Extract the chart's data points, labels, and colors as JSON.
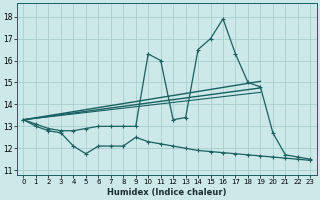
{
  "xlabel": "Humidex (Indice chaleur)",
  "background_color": "#cce8e8",
  "grid_color": "#aacece",
  "line_color": "#1a6060",
  "x_ticks": [
    0,
    1,
    2,
    3,
    4,
    5,
    6,
    7,
    8,
    9,
    10,
    11,
    12,
    13,
    14,
    15,
    16,
    17,
    18,
    19,
    20,
    21,
    22,
    23
  ],
  "y_ticks": [
    11,
    12,
    13,
    14,
    15,
    16,
    17,
    18
  ],
  "ylim": [
    10.8,
    18.6
  ],
  "xlim": [
    -0.5,
    23.5
  ],
  "upper_x": [
    0,
    1,
    2,
    3,
    4,
    5,
    6,
    7,
    8,
    9,
    10,
    11,
    12,
    13,
    14,
    15,
    16,
    17,
    18,
    19,
    20,
    21,
    22,
    23
  ],
  "upper_y": [
    13.3,
    13.1,
    12.9,
    12.8,
    12.8,
    12.9,
    13.0,
    13.0,
    13.0,
    13.0,
    16.3,
    16.0,
    13.3,
    13.4,
    16.5,
    17.0,
    17.9,
    16.3,
    15.0,
    14.8,
    12.7,
    11.7,
    11.6,
    11.5
  ],
  "lower_x": [
    0,
    1,
    2,
    3,
    4,
    5,
    6,
    7,
    8,
    9,
    10,
    11,
    12,
    13,
    14,
    15,
    16,
    17,
    18,
    19,
    20,
    21,
    22,
    23
  ],
  "lower_y": [
    13.3,
    13.0,
    12.8,
    12.7,
    12.1,
    11.75,
    12.1,
    12.1,
    12.1,
    12.5,
    12.3,
    12.2,
    12.1,
    12.0,
    11.9,
    11.85,
    11.8,
    11.75,
    11.7,
    11.65,
    11.6,
    11.55,
    11.5,
    11.45
  ],
  "line1_x": [
    0,
    19
  ],
  "line1_y": [
    13.3,
    15.05
  ],
  "line2_x": [
    0,
    19
  ],
  "line2_y": [
    13.3,
    14.75
  ],
  "line3_x": [
    0,
    19
  ],
  "line3_y": [
    13.3,
    14.55
  ]
}
